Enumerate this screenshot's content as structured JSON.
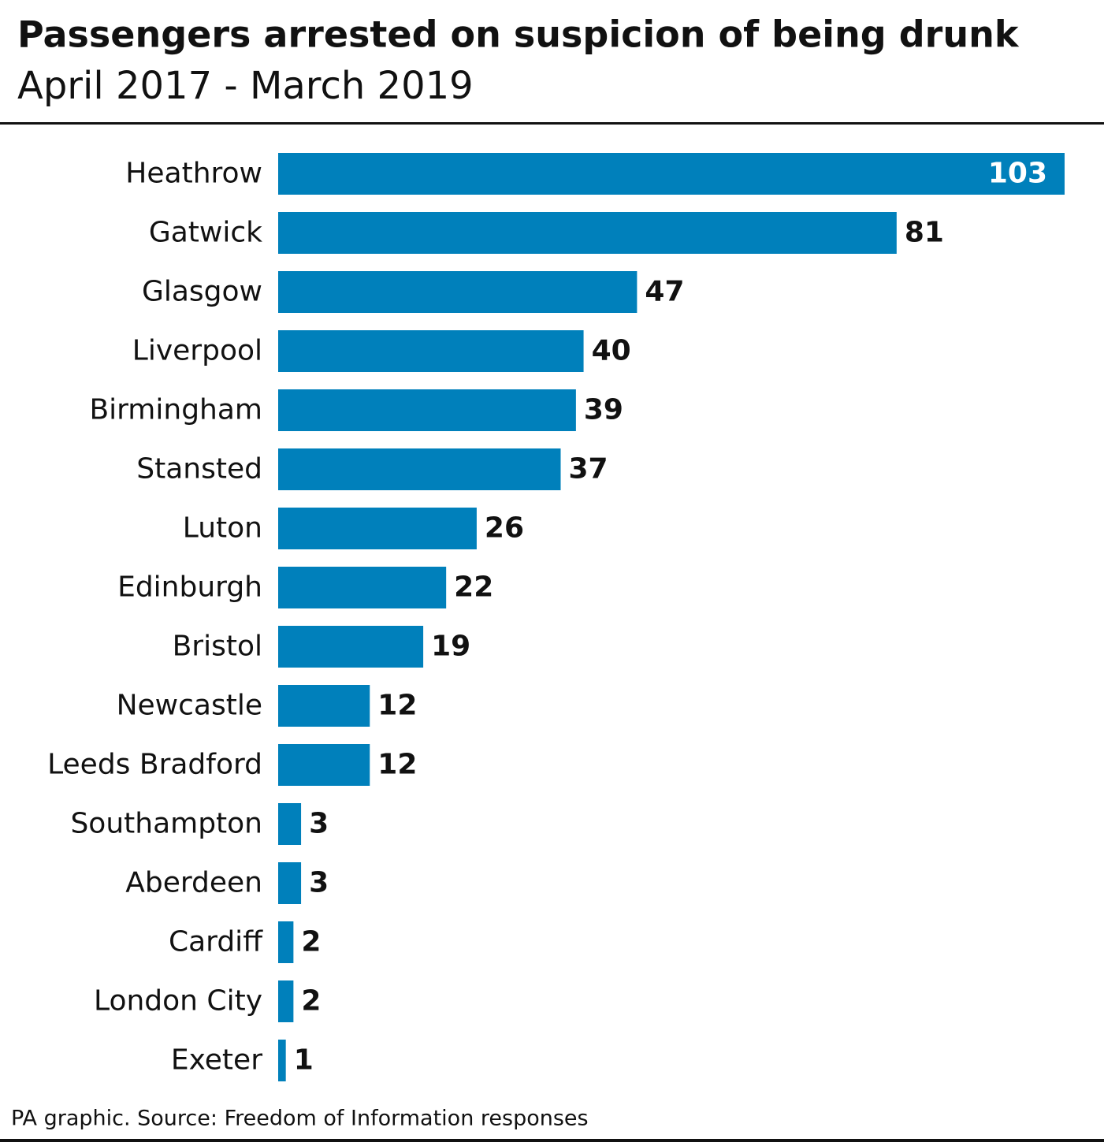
{
  "chart_data": {
    "type": "bar",
    "orientation": "horizontal",
    "title": "Passengers arrested on suspicion of being drunk",
    "subtitle": "April 2017 - March 2019",
    "categories": [
      "Heathrow",
      "Gatwick",
      "Glasgow",
      "Liverpool",
      "Birmingham",
      "Stansted",
      "Luton",
      "Edinburgh",
      "Bristol",
      "Newcastle",
      "Leeds Bradford",
      "Southampton",
      "Aberdeen",
      "Cardiff",
      "London City",
      "Exeter"
    ],
    "values": [
      103,
      81,
      47,
      40,
      39,
      37,
      26,
      22,
      19,
      12,
      12,
      3,
      3,
      2,
      2,
      1
    ],
    "color": "#0080bb",
    "source": "PA graphic. Source: Freedom of Information responses"
  }
}
